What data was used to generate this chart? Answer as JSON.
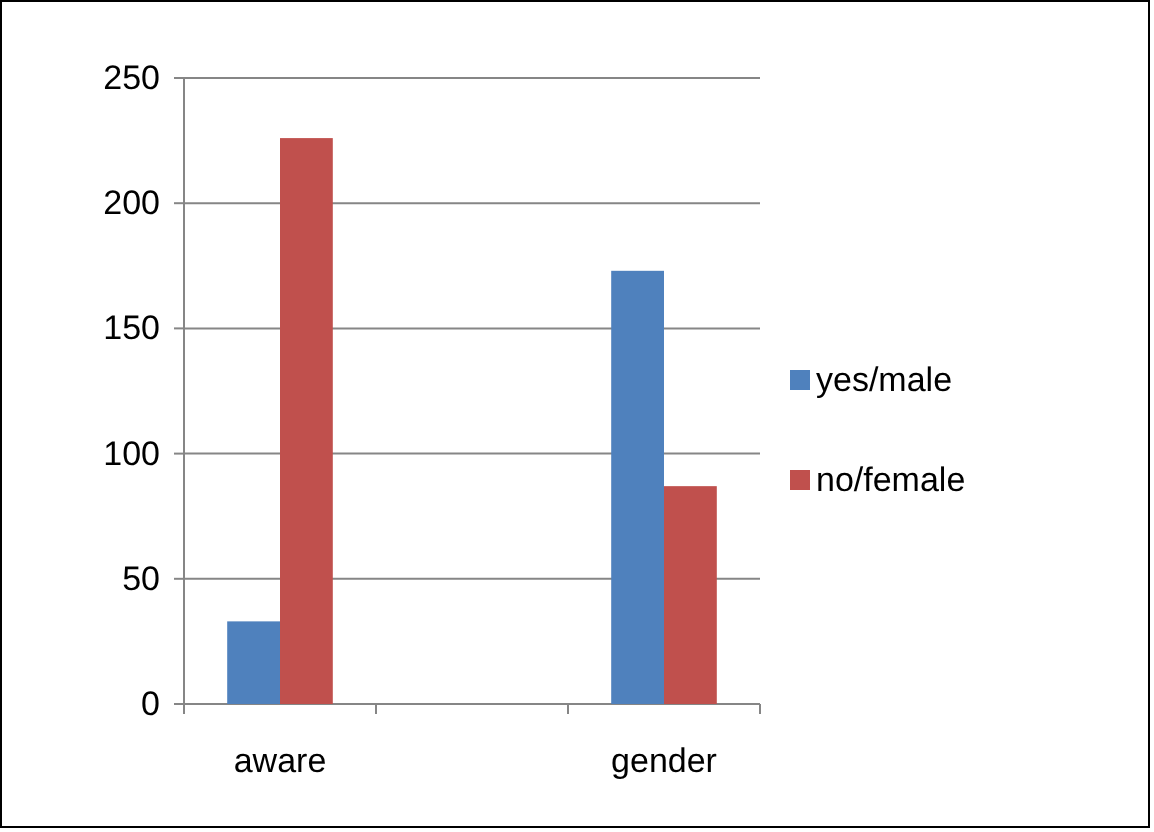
{
  "chart_data": {
    "type": "bar",
    "categories": [
      "aware",
      null,
      "gender"
    ],
    "series": [
      {
        "name": "yes/male",
        "color": "#4f81bd",
        "values": [
          33,
          null,
          173
        ]
      },
      {
        "name": "no/female",
        "color": "#c0504d",
        "values": [
          226,
          null,
          87
        ]
      }
    ],
    "ylim": [
      0,
      250
    ],
    "yticks": [
      0,
      50,
      100,
      150,
      200,
      250
    ],
    "grid": "y",
    "legend": "right"
  }
}
